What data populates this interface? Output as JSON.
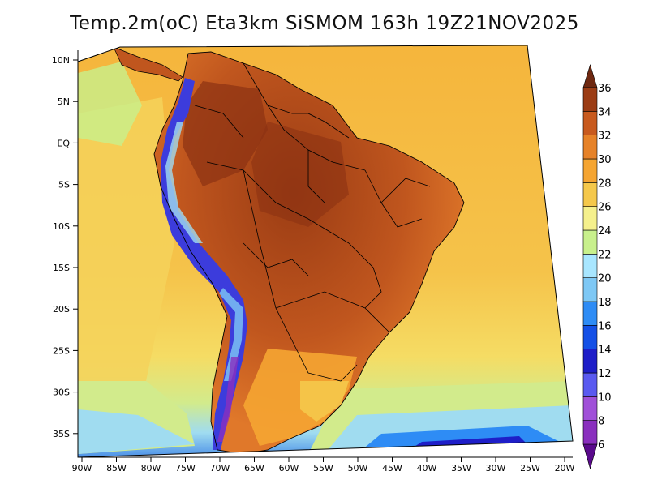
{
  "title": "Temp.2m(oC) Eta3km SiSMOM 163h 19Z21NOV2025",
  "lat_labels": [
    "10N",
    "5N",
    "EQ",
    "5S",
    "10S",
    "15S",
    "20S",
    "25S",
    "30S",
    "35S"
  ],
  "lon_labels": [
    "90W",
    "85W",
    "80W",
    "75W",
    "70W",
    "65W",
    "60W",
    "55W",
    "50W",
    "45W",
    "40W",
    "35W",
    "30W",
    "25W",
    "20W"
  ],
  "colorbar": {
    "values": [
      "6",
      "8",
      "10",
      "12",
      "14",
      "16",
      "18",
      "20",
      "22",
      "24",
      "26",
      "28",
      "30",
      "32",
      "34",
      "36"
    ],
    "colors": [
      "#5a0a8c",
      "#8a2fbe",
      "#a050d8",
      "#5a5af0",
      "#1e1ec8",
      "#1450e6",
      "#2e8cf5",
      "#7ec8f5",
      "#a8e6ff",
      "#c8f08c",
      "#f5f08c",
      "#f5c84b",
      "#f5a532",
      "#e68228",
      "#c85a1e",
      "#9b3c14",
      "#6e2810"
    ]
  },
  "colors": {
    "ocean_warm": "#f5b53c",
    "ocean_mid": "#f5d25a",
    "ocean_cool": "#d2eb8c",
    "ocean_cold": "#a0dcf0",
    "land_hot": "#b9501e",
    "land_very_hot": "#8c3212",
    "andes_cold": "#3c3cdc",
    "border": "#000000"
  }
}
